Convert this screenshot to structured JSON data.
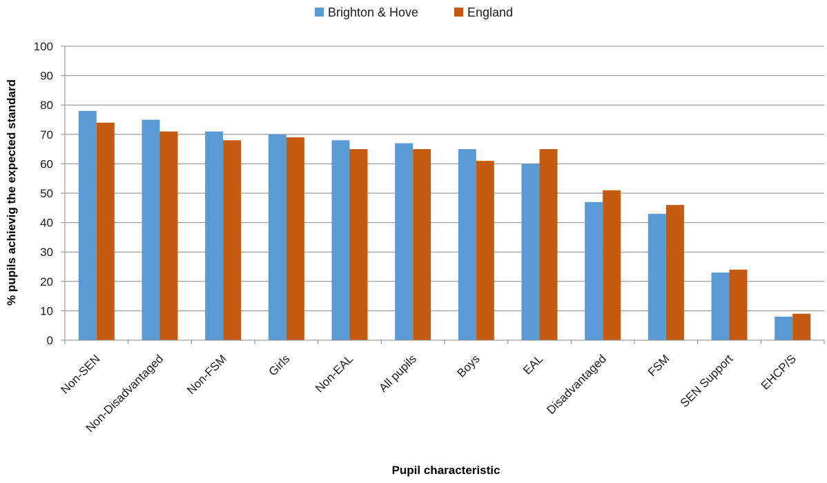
{
  "chart_data": {
    "type": "bar",
    "title": "",
    "xlabel": "Pupil characteristic",
    "ylabel": "% pupils  achievig the expected standard",
    "ylim": [
      0,
      100
    ],
    "yticks": [
      0,
      10,
      20,
      30,
      40,
      50,
      60,
      70,
      80,
      90,
      100
    ],
    "grid": true,
    "legend_position": "top",
    "categories": [
      "Non-SEN",
      "Non-Disadvantaged",
      "Non-FSM",
      "Girls",
      "Non-EAL",
      "All pupils",
      "Boys",
      "EAL",
      "Disadvantaged",
      "FSM",
      "SEN Support",
      "EHCP/S"
    ],
    "series": [
      {
        "name": "Brighton & Hove",
        "color": "#5B9BD5",
        "values": [
          78,
          75,
          71,
          70,
          68,
          67,
          65,
          60,
          47,
          43,
          23,
          8
        ]
      },
      {
        "name": "England",
        "color": "#C55A11",
        "values": [
          74,
          71,
          68,
          69,
          65,
          65,
          61,
          65,
          51,
          46,
          24,
          9
        ]
      }
    ]
  }
}
